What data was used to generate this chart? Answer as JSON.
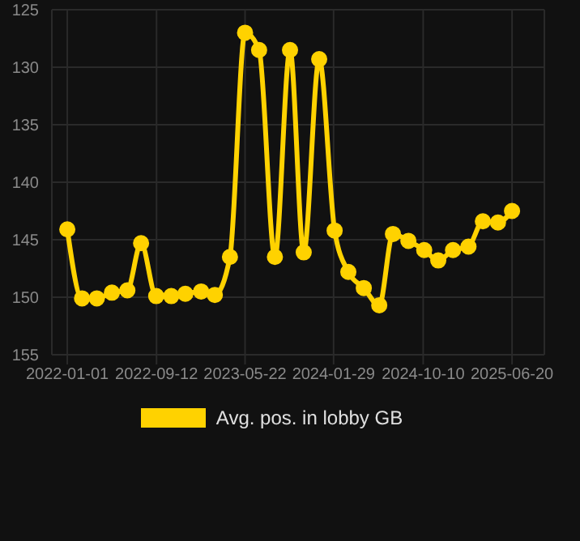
{
  "chart_data": {
    "type": "line",
    "x": [
      "2022-01-01",
      "2022-02-12",
      "2022-03-26",
      "2022-05-08",
      "2022-06-21",
      "2022-07-30",
      "2022-09-11",
      "2022-10-24",
      "2022-12-03",
      "2023-01-17",
      "2023-02-25",
      "2023-04-09",
      "2023-05-22",
      "2023-07-01",
      "2023-08-15",
      "2023-09-27",
      "2023-11-05",
      "2023-12-19",
      "2024-02-01",
      "2024-03-11",
      "2024-04-24",
      "2024-06-07",
      "2024-07-16",
      "2024-08-29",
      "2024-10-13",
      "2024-11-22",
      "2025-01-03",
      "2025-02-16",
      "2025-03-29",
      "2025-05-11",
      "2025-06-20"
    ],
    "series": [
      {
        "name": "Avg. pos. in lobby GB",
        "color": "#ffd200",
        "values": [
          144.1,
          150.1,
          150.1,
          149.6,
          149.4,
          145.3,
          149.9,
          149.9,
          149.7,
          149.5,
          149.8,
          146.5,
          127.0,
          128.5,
          146.5,
          128.5,
          146.1,
          129.3,
          144.2,
          147.8,
          149.2,
          150.7,
          144.5,
          145.1,
          145.9,
          146.8,
          145.9,
          145.6,
          143.4,
          143.5,
          142.5
        ]
      }
    ],
    "xlim": [
      "2021-11-18",
      "2025-09-20"
    ],
    "xticks": [
      "2022-01-01",
      "2022-09-12",
      "2023-05-22",
      "2024-01-29",
      "2024-10-10",
      "2025-06-20"
    ],
    "ylim": [
      155,
      125
    ],
    "yticks": [
      125,
      130,
      135,
      140,
      145,
      150,
      155
    ],
    "grid": true,
    "legend": "bottom",
    "marker": "circle",
    "line_style": "solid"
  }
}
